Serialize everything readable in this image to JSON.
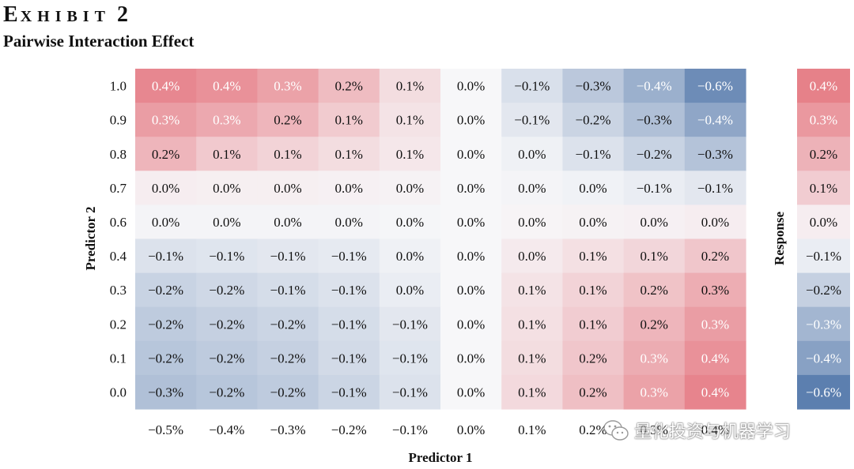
{
  "header": {
    "exhibit_label": "EXHIBIT 2",
    "title": "Pairwise Interaction Effect"
  },
  "watermark": {
    "icon": "wechat-icon",
    "text": "量化投资与机器学习"
  },
  "colors": {
    "positive": "#e0535e",
    "neutral": "#f7f7f9",
    "negative": "#4f75a9"
  },
  "chart_data": {
    "type": "heatmap",
    "title": "Pairwise Interaction Effect",
    "xlabel": "Predictor 1",
    "ylabel": "Predictor 2",
    "colorbar_label": "Response",
    "x_categories": [
      "−0.5%",
      "−0.4%",
      "−0.3%",
      "−0.2%",
      "−0.1%",
      "0.0%",
      "0.1%",
      "0.2%",
      "0.3%",
      "0.4%"
    ],
    "y_categories": [
      "1.0",
      "0.9",
      "0.8",
      "0.7",
      "0.6",
      "0.4",
      "0.3",
      "0.2",
      "0.1",
      "0.0"
    ],
    "values": [
      [
        0.4,
        0.4,
        0.3,
        0.2,
        0.1,
        0.0,
        -0.1,
        -0.3,
        -0.4,
        -0.6
      ],
      [
        0.3,
        0.3,
        0.2,
        0.1,
        0.1,
        0.0,
        -0.1,
        -0.2,
        -0.3,
        -0.4
      ],
      [
        0.2,
        0.1,
        0.1,
        0.1,
        0.1,
        0.0,
        0.0,
        -0.1,
        -0.2,
        -0.3
      ],
      [
        0.0,
        0.0,
        0.0,
        0.0,
        0.0,
        0.0,
        0.0,
        0.0,
        -0.1,
        -0.1
      ],
      [
        0.0,
        0.0,
        0.0,
        0.0,
        0.0,
        0.0,
        0.0,
        0.0,
        0.0,
        0.0
      ],
      [
        -0.1,
        -0.1,
        -0.1,
        -0.1,
        0.0,
        0.0,
        0.0,
        0.1,
        0.1,
        0.2
      ],
      [
        -0.2,
        -0.2,
        -0.1,
        -0.1,
        0.0,
        0.0,
        0.1,
        0.1,
        0.2,
        0.3
      ],
      [
        -0.2,
        -0.2,
        -0.2,
        -0.1,
        -0.1,
        0.0,
        0.1,
        0.1,
        0.2,
        0.3
      ],
      [
        -0.2,
        -0.2,
        -0.2,
        -0.1,
        -0.1,
        0.0,
        0.1,
        0.2,
        0.3,
        0.4
      ],
      [
        -0.3,
        -0.2,
        -0.2,
        -0.1,
        -0.1,
        0.0,
        0.1,
        0.2,
        0.3,
        0.4
      ]
    ],
    "shade": [
      [
        0.68,
        0.62,
        0.52,
        0.36,
        0.16,
        0.0,
        -0.18,
        -0.36,
        -0.55,
        -0.82
      ],
      [
        0.55,
        0.48,
        0.4,
        0.27,
        0.12,
        0.0,
        -0.12,
        -0.27,
        -0.42,
        -0.62
      ],
      [
        0.4,
        0.28,
        0.22,
        0.16,
        0.1,
        0.0,
        -0.05,
        -0.16,
        -0.28,
        -0.4
      ],
      [
        0.06,
        0.05,
        0.05,
        0.04,
        0.03,
        0.0,
        -0.02,
        -0.04,
        -0.08,
        -0.12
      ],
      [
        -0.02,
        -0.02,
        -0.02,
        -0.02,
        -0.01,
        0.0,
        0.02,
        0.03,
        0.04,
        0.06
      ],
      [
        -0.16,
        -0.14,
        -0.12,
        -0.1,
        -0.05,
        0.0,
        0.08,
        0.14,
        0.2,
        0.3
      ],
      [
        -0.28,
        -0.24,
        -0.2,
        -0.16,
        -0.08,
        0.0,
        0.12,
        0.22,
        0.32,
        0.45
      ],
      [
        -0.34,
        -0.3,
        -0.26,
        -0.2,
        -0.12,
        0.0,
        0.14,
        0.26,
        0.4,
        0.55
      ],
      [
        -0.38,
        -0.34,
        -0.3,
        -0.22,
        -0.14,
        0.0,
        0.16,
        0.3,
        0.46,
        0.62
      ],
      [
        -0.42,
        -0.38,
        -0.34,
        -0.26,
        -0.16,
        0.0,
        0.18,
        0.34,
        0.52,
        0.7
      ]
    ],
    "display_labels": [
      [
        "0.4%",
        "0.4%",
        "0.3%",
        "0.2%",
        "0.1%",
        "0.0%",
        "−0.1%",
        "−0.3%",
        "−0.4%",
        "−0.6%"
      ],
      [
        "0.3%",
        "0.3%",
        "0.2%",
        "0.1%",
        "0.1%",
        "0.0%",
        "−0.1%",
        "−0.2%",
        "−0.3%",
        "−0.4%"
      ],
      [
        "0.2%",
        "0.1%",
        "0.1%",
        "0.1%",
        "0.1%",
        "0.0%",
        "0.0%",
        "−0.1%",
        "−0.2%",
        "−0.3%"
      ],
      [
        "0.0%",
        "0.0%",
        "0.0%",
        "0.0%",
        "0.0%",
        "0.0%",
        "0.0%",
        "0.0%",
        "−0.1%",
        "−0.1%"
      ],
      [
        "0.0%",
        "0.0%",
        "0.0%",
        "0.0%",
        "0.0%",
        "0.0%",
        "0.0%",
        "0.0%",
        "0.0%",
        "0.0%"
      ],
      [
        "−0.1%",
        "−0.1%",
        "−0.1%",
        "−0.1%",
        "0.0%",
        "0.0%",
        "0.0%",
        "0.1%",
        "0.1%",
        "0.2%"
      ],
      [
        "−0.2%",
        "−0.2%",
        "−0.1%",
        "−0.1%",
        "0.0%",
        "0.0%",
        "0.1%",
        "0.1%",
        "0.2%",
        "0.3%"
      ],
      [
        "−0.2%",
        "−0.2%",
        "−0.2%",
        "−0.1%",
        "−0.1%",
        "0.0%",
        "0.1%",
        "0.1%",
        "0.2%",
        "0.3%"
      ],
      [
        "−0.2%",
        "−0.2%",
        "−0.2%",
        "−0.1%",
        "−0.1%",
        "0.0%",
        "0.1%",
        "0.2%",
        "0.3%",
        "0.4%"
      ],
      [
        "−0.3%",
        "−0.2%",
        "−0.2%",
        "−0.1%",
        "−0.1%",
        "0.0%",
        "0.1%",
        "0.2%",
        "0.3%",
        "0.4%"
      ]
    ],
    "colorbar": {
      "values": [
        0.4,
        0.3,
        0.2,
        0.1,
        0.0,
        -0.1,
        -0.2,
        -0.3,
        -0.4,
        -0.6
      ],
      "labels": [
        "0.4%",
        "0.3%",
        "0.2%",
        "0.1%",
        "0.0%",
        "−0.1%",
        "−0.2%",
        "−0.3%",
        "−0.4%",
        "−0.6%"
      ],
      "shade": [
        0.72,
        0.58,
        0.42,
        0.26,
        0.06,
        -0.08,
        -0.3,
        -0.5,
        -0.66,
        -0.92
      ]
    }
  }
}
